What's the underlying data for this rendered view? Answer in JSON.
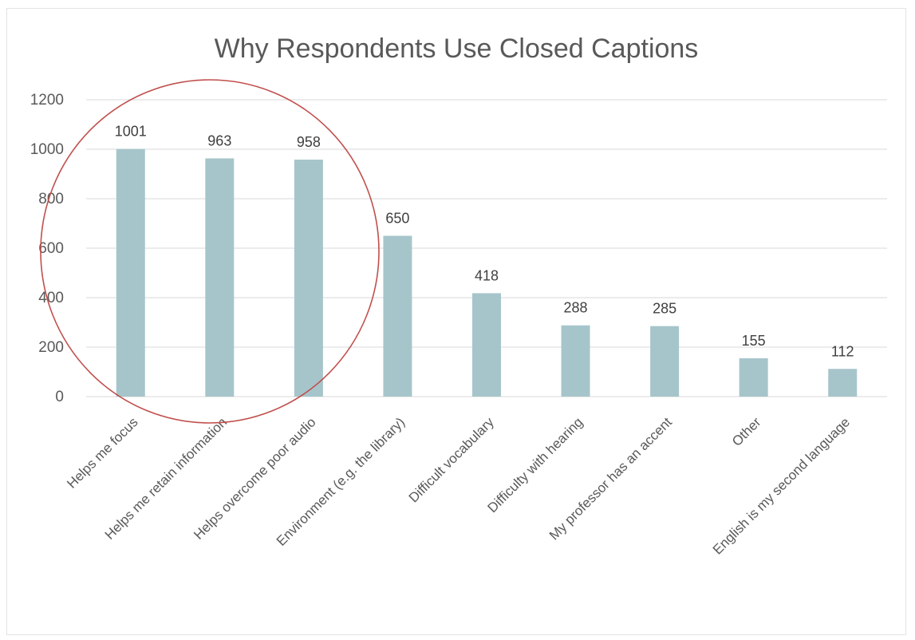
{
  "chart_data": {
    "type": "bar",
    "title": "Why Respondents Use Closed Captions",
    "categories": [
      "Helps me focus",
      "Helps me retain information",
      "Helps overcome poor audio",
      "Environment (e.g. the library)",
      "Difficult vocabulary",
      "Difficulty with hearing",
      "My professor has an accent",
      "Other",
      "English is my second language"
    ],
    "values": [
      1001,
      963,
      958,
      650,
      418,
      288,
      285,
      155,
      112
    ],
    "data_labels": [
      "1001",
      "963",
      "958",
      "650",
      "418",
      "288",
      "285",
      "155",
      "112"
    ],
    "ylim": [
      0,
      1200
    ],
    "yticks": [
      "0",
      "200",
      "400",
      "600",
      "800",
      "1000",
      "1200"
    ],
    "grid": true,
    "legend": "none",
    "annotation": "red circle around first three bars",
    "colors": {
      "bar": "#a6c5cb",
      "grid": "#d9d9d9",
      "circle": "#c0504d"
    }
  }
}
